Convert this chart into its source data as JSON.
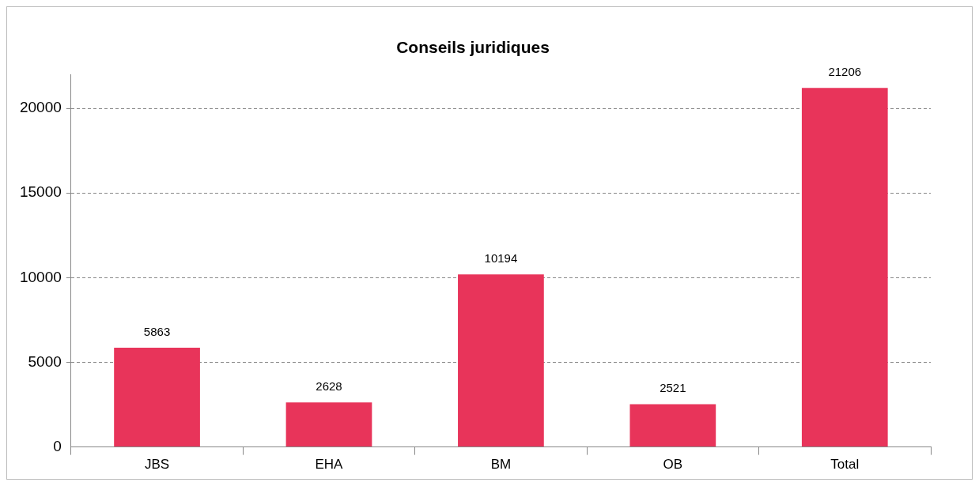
{
  "chart_data": {
    "type": "bar",
    "title": "Conseils juridiques",
    "categories": [
      "JBS",
      "EHA",
      "BM",
      "OB",
      "Total"
    ],
    "values": [
      5863,
      2628,
      10194,
      2521,
      21206
    ],
    "color": "#e8345a",
    "ylim": [
      0,
      22000
    ],
    "yticks": [
      0,
      5000,
      10000,
      15000,
      20000
    ],
    "grid": "y",
    "legend": false,
    "data_labels": true
  }
}
